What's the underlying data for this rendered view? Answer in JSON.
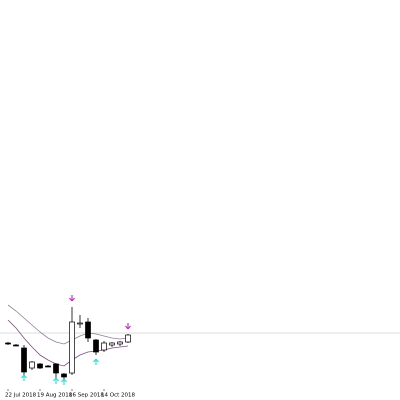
{
  "chart_data": {
    "type": "candlestick",
    "categories": [
      "22 Jul 2018",
      null,
      null,
      null,
      "19 Aug 2018",
      null,
      null,
      null,
      "16 Sep 2018",
      null,
      null,
      null,
      "14 Oct 2018",
      null,
      null,
      null
    ],
    "open": [
      57,
      55,
      52,
      32,
      36,
      34,
      36,
      26,
      27,
      76,
      78,
      60,
      50,
      55,
      56,
      58
    ],
    "high": [
      58,
      56,
      55,
      39,
      37,
      35,
      37,
      27,
      93,
      85,
      82,
      61,
      59,
      58,
      59,
      66
    ],
    "low": [
      55,
      54,
      25,
      30,
      31,
      33,
      22,
      20,
      25,
      72,
      58,
      45,
      48,
      53,
      54,
      57
    ],
    "close": [
      56,
      54,
      28,
      38,
      32,
      33,
      27,
      23,
      78,
      77,
      62,
      48,
      57,
      57,
      58,
      65
    ],
    "up_color": "#ffffff",
    "down_color": "#000000",
    "outline_color": "#000000",
    "series": [
      {
        "color": "#8e7f9c",
        "values": [
          95,
          89,
          82,
          75,
          68,
          62,
          58,
          56,
          60,
          64,
          67,
          66,
          64,
          62,
          61,
          62
        ]
      },
      {
        "color": "#7d4f7d",
        "values": [
          80,
          72,
          62,
          53,
          45,
          40,
          36,
          34,
          40,
          45,
          48,
          49,
          50,
          52,
          53,
          54
        ]
      }
    ],
    "signals_down": [
      null,
      null,
      null,
      null,
      null,
      null,
      null,
      null,
      102,
      null,
      null,
      null,
      null,
      null,
      null,
      74
    ],
    "signals_down_color": "#cc33cc",
    "signals_up": [
      null,
      null,
      22,
      null,
      null,
      null,
      19,
      18,
      null,
      null,
      null,
      38,
      null,
      null,
      null,
      null
    ],
    "signals_up_color": "#33dddd",
    "hline": 67,
    "hline_color": "#bbbbbb",
    "ylim": [
      0,
      400
    ]
  }
}
